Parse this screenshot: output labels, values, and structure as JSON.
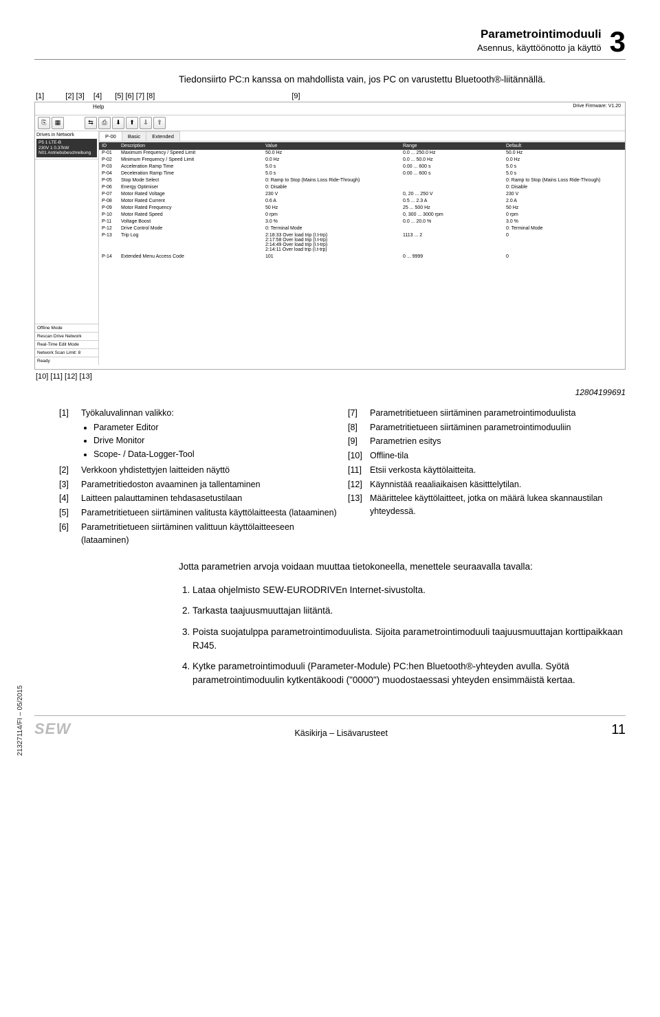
{
  "header": {
    "title": "Parametrointimoduuli",
    "subtitle": "Asennus, käyttöönotto ja käyttö",
    "chapter_num": "3"
  },
  "intro": "Tiedonsiirto PC:n kanssa on mahdollista vain, jos PC on varustettu Bluetooth®-liitännällä.",
  "callouts_top": [
    "[1]",
    "[2]",
    "[3]",
    "[4]",
    "[5]",
    "[6]",
    "[7]",
    "[8]",
    "[9]"
  ],
  "callouts_bottom": [
    "[10]",
    "[11]",
    "[12]",
    "[13]"
  ],
  "screenshot": {
    "menu": "Help",
    "firmware": "Drive Firmware: V1.20",
    "toolbar_icons": [
      "⎘",
      "▦",
      "⇆",
      "⎙",
      "⬇",
      "⬆",
      "⇩",
      "⇧"
    ],
    "sidebar_header": "Drives in Network",
    "drive": {
      "l1": "P5 1  LTE-B",
      "l2": "230V 1  0.37kW",
      "l3": "N01 Antriebsbeschreibung"
    },
    "sidebar_bottom": [
      "Offline Mode",
      "Rescan Drive Network",
      "Real-Time Edit Mode",
      "Network Scan Limit:  8",
      "Ready"
    ],
    "tabs": [
      "P-00",
      "Basic",
      "Extended"
    ],
    "columns": [
      "ID",
      "Description",
      "Value",
      "Range",
      "Default"
    ],
    "rows": [
      {
        "id": "P-01",
        "desc": "Maximum Frequency / Speed Limit",
        "val": "50.0 Hz",
        "range": "0.0 ... 250.0 Hz",
        "def": "50.0 Hz"
      },
      {
        "id": "P-02",
        "desc": "Minimum Frequency / Speed Limit",
        "val": "0.0 Hz",
        "range": "0.0 ... 50.0 Hz",
        "def": "0.0 Hz"
      },
      {
        "id": "P-03",
        "desc": "Acceleration Ramp Time",
        "val": "5.0 s",
        "range": "0.00 ... 600 s",
        "def": "5.0 s"
      },
      {
        "id": "P-04",
        "desc": "Deceleration Ramp Time",
        "val": "5.0 s",
        "range": "0.00 ... 600 s",
        "def": "5.0 s"
      },
      {
        "id": "P-05",
        "desc": "Stop Mode Select",
        "val": "0: Ramp to Stop (Mains Loss Ride-Through)",
        "range": "",
        "def": "0: Ramp to Stop (Mains Loss Ride-Through)"
      },
      {
        "id": "P-06",
        "desc": "Energy Optimiser",
        "val": "0: Disable",
        "range": "",
        "def": "0: Disable"
      },
      {
        "id": "P-07",
        "desc": "Motor Rated Voltage",
        "val": "230 V",
        "range": "0, 20 ... 250 V",
        "def": "230 V"
      },
      {
        "id": "P-08",
        "desc": "Motor Rated Current",
        "val": "0.6 A",
        "range": "0.5 ... 2.3 A",
        "def": "2.0 A"
      },
      {
        "id": "P-09",
        "desc": "Motor Rated Frequency",
        "val": "50 Hz",
        "range": "25 ... 500 Hz",
        "def": "50 Hz"
      },
      {
        "id": "P-10",
        "desc": "Motor Rated Speed",
        "val": "0 rpm",
        "range": "0, 300 ... 3000 rpm",
        "def": "0 rpm"
      },
      {
        "id": "P-11",
        "desc": "Voltage Boost",
        "val": "3.0 %",
        "range": "0.0 ... 20.0 %",
        "def": "3.0 %"
      },
      {
        "id": "P-12",
        "desc": "Drive Control Mode",
        "val": "0: Terminal Mode",
        "range": "",
        "def": "0: Terminal Mode"
      },
      {
        "id": "P-13",
        "desc": "Trip Log",
        "val": "2:18:33  Over load trip (I.t-trp)\n2:17:58  Over load trip (I.t-trp)\n2:14:49  Over load trip (I.t-trp)\n2:14:11  Over load trip (I.t-trp)",
        "range": "1113 ... 2",
        "def": "0"
      },
      {
        "id": "P-14",
        "desc": "Extended Menu Access Code",
        "val": "101",
        "range": "0 ... 9999",
        "def": "0"
      }
    ]
  },
  "figure_number": "12804199691",
  "legend_left": [
    {
      "n": "[1]",
      "t": "Työkaluvalinnan valikko:",
      "sub": [
        "Parameter Editor",
        "Drive Monitor",
        "Scope- / Data-Logger-Tool"
      ]
    },
    {
      "n": "[2]",
      "t": "Verkkoon yhdistettyjen laitteiden näyttö"
    },
    {
      "n": "[3]",
      "t": "Parametritiedoston avaaminen ja tallentaminen"
    },
    {
      "n": "[4]",
      "t": "Laitteen palauttaminen tehdasasetustilaan"
    },
    {
      "n": "[5]",
      "t": "Parametritietueen siirtäminen valitusta käyttölaitteesta (lataaminen)"
    },
    {
      "n": "[6]",
      "t": "Parametritietueen siirtäminen valittuun käyttölaitteeseen (lataaminen)"
    }
  ],
  "legend_right": [
    {
      "n": "[7]",
      "t": "Parametritietueen siirtäminen parametrointimoduulista"
    },
    {
      "n": "[8]",
      "t": "Parametritietueen siirtäminen parametrointimoduuliin"
    },
    {
      "n": "[9]",
      "t": "Parametrien esitys"
    },
    {
      "n": "[10]",
      "t": "Offline-tila"
    },
    {
      "n": "[11]",
      "t": "Etsii verkosta käyttölaitteita."
    },
    {
      "n": "[12]",
      "t": "Käynnistää reaaliaikaisen käsitttelytilan."
    },
    {
      "n": "[13]",
      "t": "Määrittelee käyttölaitteet, jotka on määrä lukea skannaustilan yhteydessä."
    }
  ],
  "instructions": {
    "lead": "Jotta parametrien arvoja voidaan muuttaa tietokoneella, menettele seuraavalla tavalla:",
    "items": [
      "Lataa ohjelmisto SEW-EURODRIVEn Internet-sivustolta.",
      "Tarkasta taajuusmuuttajan liitäntä.",
      "Poista suojatulppa parametrointimoduulista. Sijoita parametrointimoduuli taajuusmuuttajan korttipaikkaan RJ45.",
      "Kytke parametrointimoduuli (Parameter-Module) PC:hen Bluetooth®-yhteyden avulla. Syötä parametrointimoduulin kytkentäkoodi (\"0000\") muodostaessasi yhteyden ensimmäistä kertaa."
    ]
  },
  "side_code": "21327114/FI – 05/2015",
  "footer": {
    "logo": "SEW",
    "doc": "Käsikirja – Lisävarusteet",
    "page": "11"
  }
}
